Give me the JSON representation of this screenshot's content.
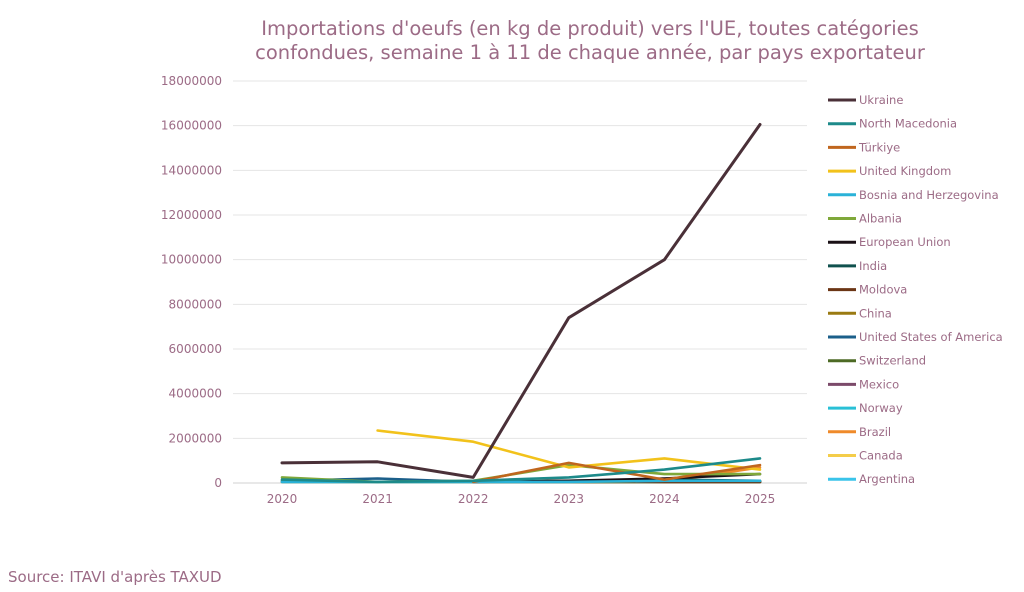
{
  "chart_data": {
    "type": "line",
    "title_lines": [
      "Importations d'oeufs (en kg de produit) vers l'UE, toutes catégories",
      "confondues, semaine 1 à 11 de chaque année, par pays exportateur"
    ],
    "x": [
      "2020",
      "2021",
      "2022",
      "2023",
      "2024",
      "2025"
    ],
    "ylim": [
      0,
      18000000
    ],
    "y_ticks": [
      0,
      2000000,
      4000000,
      6000000,
      8000000,
      10000000,
      12000000,
      14000000,
      16000000,
      18000000
    ],
    "y_tick_labels": [
      "0",
      "2000000",
      "4000000",
      "6000000",
      "8000000",
      "10000000",
      "12000000",
      "14000000",
      "16000000",
      "18000000"
    ],
    "grid": true,
    "legend_position": "right",
    "series": [
      {
        "name": "Ukraine",
        "color": "#4a3038",
        "values": [
          900000,
          950000,
          250000,
          7400000,
          10000000,
          16050000
        ]
      },
      {
        "name": "North Macedonia",
        "color": "#1d8a8a",
        "values": [
          150000,
          50000,
          100000,
          250000,
          600000,
          1100000
        ]
      },
      {
        "name": "Türkiye",
        "color": "#c0661e",
        "values": [
          null,
          null,
          50000,
          900000,
          150000,
          800000
        ]
      },
      {
        "name": "United Kingdom",
        "color": "#f2c21b",
        "values": [
          null,
          2350000,
          1850000,
          700000,
          1100000,
          600000
        ]
      },
      {
        "name": "Bosnia and Herzegovina",
        "color": "#2ab2d8",
        "values": [
          50000,
          50000,
          50000,
          50000,
          100000,
          100000
        ]
      },
      {
        "name": "Albania",
        "color": "#7fa83a",
        "values": [
          250000,
          50000,
          100000,
          800000,
          400000,
          400000
        ]
      },
      {
        "name": "European Union",
        "color": "#1a1016",
        "values": [
          null,
          null,
          50000,
          100000,
          200000,
          400000
        ]
      },
      {
        "name": "India",
        "color": "#10514e",
        "values": [
          null,
          null,
          null,
          100000,
          150000,
          100000
        ]
      },
      {
        "name": "Moldova",
        "color": "#6b3515",
        "values": [
          null,
          null,
          50000,
          100000,
          50000,
          50000
        ]
      },
      {
        "name": "China",
        "color": "#9a7a12",
        "values": [
          50000,
          50000,
          50000,
          50000,
          50000,
          50000
        ]
      },
      {
        "name": "United States of America",
        "color": "#1b5f8a",
        "values": [
          100000,
          200000,
          50000,
          50000,
          50000,
          50000
        ]
      },
      {
        "name": "Switzerland",
        "color": "#4d6a25",
        "values": [
          null,
          null,
          50000,
          50000,
          50000,
          50000
        ]
      },
      {
        "name": "Mexico",
        "color": "#7b4a6a",
        "values": [
          null,
          null,
          50000,
          50000,
          50000,
          50000
        ]
      },
      {
        "name": "Norway",
        "color": "#29c0d6",
        "values": [
          50000,
          50000,
          50000,
          50000,
          50000,
          50000
        ]
      },
      {
        "name": "Brazil",
        "color": "#ef8a2a",
        "values": [
          null,
          null,
          50000,
          50000,
          50000,
          700000
        ]
      },
      {
        "name": "Canada",
        "color": "#f4cd4a",
        "values": [
          null,
          null,
          50000,
          50000,
          50000,
          50000
        ]
      },
      {
        "name": "Argentina",
        "color": "#3ac4ea",
        "values": [
          null,
          null,
          50000,
          50000,
          50000,
          50000
        ]
      }
    ]
  },
  "source": "Source: ITAVI d'après TAXUD"
}
